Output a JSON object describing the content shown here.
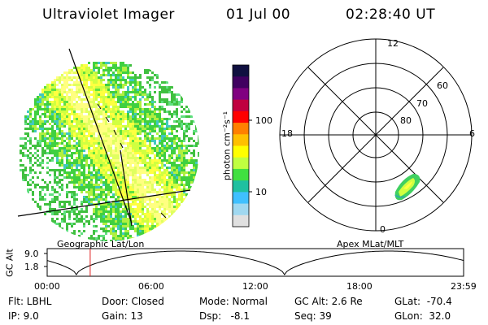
{
  "header": {
    "instrument": "Ultraviolet Imager",
    "date": "01 Jul 00",
    "time": "02:28:40 UT"
  },
  "image_panel": {
    "caption": "Geographic Lat/Lon"
  },
  "colorbar": {
    "unit_label": "photon cm⁻²s⁻¹",
    "tick_100": "100",
    "tick_10": "10",
    "colors": [
      "#101040",
      "#400060",
      "#800080",
      "#c00040",
      "#ff0000",
      "#ff8000",
      "#ffc000",
      "#ffff00",
      "#c0ff40",
      "#40e040",
      "#20c0a0",
      "#40c0ff",
      "#a0d8f0",
      "#e0e0e0"
    ]
  },
  "polar_panel": {
    "caption": "Apex MLat/MLT",
    "mlt_12": "12",
    "mlt_18": "18",
    "mlt_6": "6",
    "mlt_0": "0",
    "lat_60": "60",
    "lat_70": "70",
    "lat_80": "80"
  },
  "alt_plot": {
    "ylabel": "GC Alt",
    "ytick_top": "9.0",
    "ytick_bottom": "1.8",
    "xticks": [
      "00:00",
      "06:00",
      "12:00",
      "18:00",
      "23:59"
    ],
    "marker_time": "02:28:40"
  },
  "info": {
    "flt": "Flt: LBHL",
    "ip": "IP: 9.0",
    "door": "Door: Closed",
    "gain": "Gain: 13",
    "mode": "Mode: Normal",
    "dsp": "Dsp:   -8.1",
    "gcalt": "GC Alt: 2.6 Re",
    "seq": "Seq: 39",
    "glat": "GLat:  -70.4",
    "glon": "GLon:  32.0"
  }
}
